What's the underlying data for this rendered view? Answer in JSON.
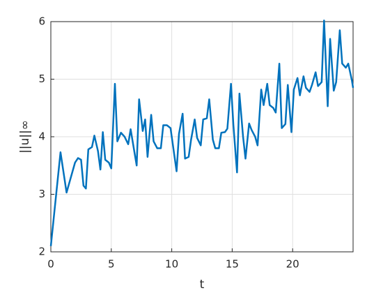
{
  "chart_data": {
    "type": "line",
    "x_label": "t",
    "y_label": "||u||∞",
    "x": [
      0,
      0.8,
      1.3,
      2,
      2.25,
      2.5,
      2.7,
      2.9,
      3.1,
      3.4,
      3.6,
      3.9,
      4.1,
      4.3,
      4.5,
      4.8,
      5,
      5.3,
      5.5,
      5.8,
      6.1,
      6.4,
      6.6,
      6.9,
      7.1,
      7.3,
      7.6,
      7.8,
      8,
      8.3,
      8.5,
      8.8,
      9.1,
      9.3,
      9.6,
      9.9,
      10.1,
      10.4,
      10.6,
      10.9,
      11.1,
      11.4,
      11.6,
      11.9,
      12.1,
      12.4,
      12.6,
      12.9,
      13.1,
      13.4,
      13.6,
      13.9,
      14.1,
      14.4,
      14.6,
      14.9,
      15.1,
      15.4,
      15.6,
      15.9,
      16.1,
      16.4,
      16.6,
      16.9,
      17.1,
      17.4,
      17.6,
      17.9,
      18.1,
      18.4,
      18.6,
      18.9,
      19.1,
      19.4,
      19.6,
      19.9,
      20.1,
      20.4,
      20.6,
      20.9,
      21.1,
      21.4,
      21.6,
      21.9,
      22.1,
      22.4,
      22.6,
      22.9,
      23.1,
      23.4,
      23.6,
      23.9,
      24.1,
      24.4,
      24.6,
      24.9,
      25
    ],
    "series": [
      {
        "color": "#0072bd",
        "values": [
          2.1,
          3.73,
          3.03,
          3.55,
          3.63,
          3.6,
          3.15,
          3.1,
          3.78,
          3.82,
          4.02,
          3.75,
          3.43,
          4.08,
          3.6,
          3.55,
          3.45,
          4.92,
          3.92,
          4.07,
          4.0,
          3.87,
          4.13,
          3.75,
          3.5,
          4.65,
          4.1,
          4.3,
          3.65,
          4.38,
          3.92,
          3.8,
          3.8,
          4.2,
          4.2,
          4.15,
          3.85,
          3.4,
          4.05,
          4.4,
          3.62,
          3.65,
          3.95,
          4.3,
          3.98,
          3.85,
          4.3,
          4.32,
          4.65,
          3.95,
          3.8,
          3.8,
          4.07,
          4.08,
          4.14,
          4.92,
          4.2,
          3.38,
          4.75,
          4.0,
          3.62,
          4.23,
          4.12,
          4.0,
          3.85,
          4.82,
          4.55,
          4.92,
          4.55,
          4.5,
          4.42,
          5.27,
          4.15,
          4.22,
          4.9,
          4.08,
          4.82,
          5.02,
          4.72,
          5.05,
          4.85,
          4.78,
          4.9,
          5.12,
          4.88,
          4.95,
          6.02,
          4.53,
          5.7,
          4.8,
          4.95,
          5.85,
          5.27,
          5.2,
          5.27,
          4.98,
          4.85
        ]
      }
    ],
    "xlim": [
      0,
      25
    ],
    "xticks": [
      0,
      5,
      10,
      15,
      20
    ],
    "ylim": [
      2,
      6
    ],
    "yticks": [
      2,
      3,
      4,
      5,
      6
    ],
    "grid": true
  }
}
